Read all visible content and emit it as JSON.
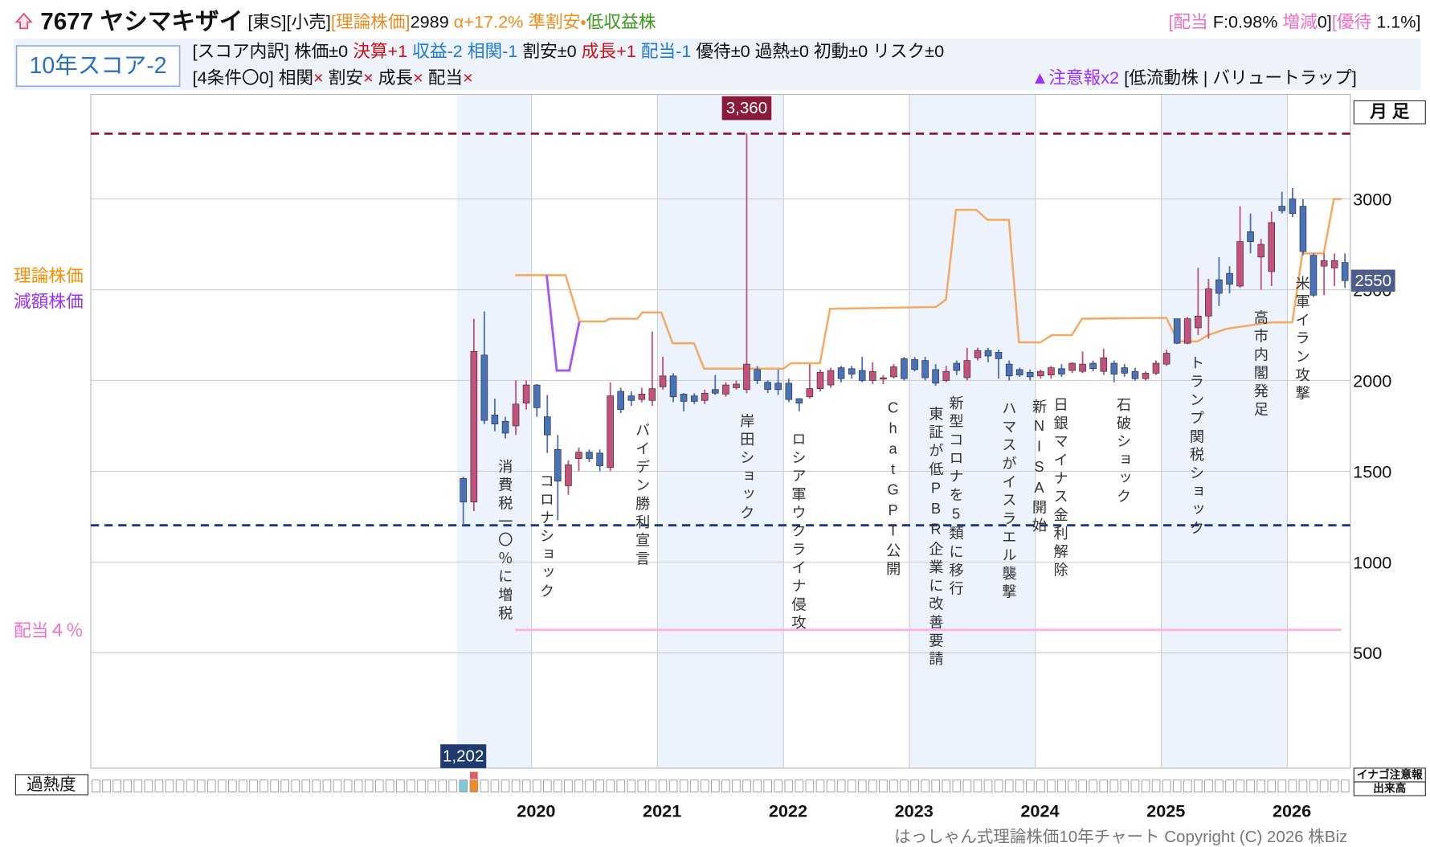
{
  "header": {
    "parts": [
      {
        "text": "7677 ヤシマキザイ",
        "color": "#111111",
        "bold": true
      },
      {
        "text": " [東S][小売]",
        "color": "#111111"
      },
      {
        "text": "[理論株価]",
        "color": "#f08c1e"
      },
      {
        "text": "2989 ",
        "color": "#111111"
      },
      {
        "text": "α+17.2% ",
        "color": "#f08c1e"
      },
      {
        "text": "準割安・",
        "color": "#f08c1e"
      },
      {
        "text": "低収益株",
        "color": "#3a9a1a"
      }
    ],
    "right_parts": [
      {
        "text": "[配当 ",
        "color": "#f06ec8"
      },
      {
        "text": "F:0.98% ",
        "color": "#111111"
      },
      {
        "text": "増減",
        "color": "#f06ec8"
      },
      {
        "text": "0]",
        "color": "#111111"
      },
      {
        "text": "[優待 ",
        "color": "#f06ec8"
      },
      {
        "text": "1.1%]",
        "color": "#111111"
      }
    ]
  },
  "score": {
    "box": "10年スコア-2",
    "line1": [
      {
        "text": "[スコア内訳] 株価±0 ",
        "color": "#111111"
      },
      {
        "text": "決算+1 ",
        "color": "#d0101a"
      },
      {
        "text": "収益-2 相関-1 ",
        "color": "#1f7ad6"
      },
      {
        "text": "割安±0 ",
        "color": "#111111"
      },
      {
        "text": "成長+1 ",
        "color": "#d0101a"
      },
      {
        "text": "配当-1 ",
        "color": "#1f7ad6"
      },
      {
        "text": "優待±0 過熱±0 初動±0 リスク±0",
        "color": "#111111"
      }
    ],
    "line2": [
      {
        "text": "[4条件〇0] 相関",
        "color": "#111111"
      },
      {
        "text": "× ",
        "color": "#d0101a"
      },
      {
        "text": "割安",
        "color": "#111111"
      },
      {
        "text": "× ",
        "color": "#d0101a"
      },
      {
        "text": "成長",
        "color": "#111111"
      },
      {
        "text": "× ",
        "color": "#d0101a"
      },
      {
        "text": "配当",
        "color": "#111111"
      },
      {
        "text": "×",
        "color": "#d0101a"
      }
    ],
    "alert": [
      {
        "text": "▲注意報x2 ",
        "color": "#9b30ff"
      },
      {
        "text": "[低流動株 | バリュートラップ]",
        "color": "#111111"
      }
    ]
  },
  "chart_data": {
    "type": "candlestick",
    "x": [
      2019.458,
      2019.542,
      2019.625,
      2019.708,
      2019.792,
      2019.875,
      2019.958,
      2020.042,
      2020.125,
      2020.208,
      2020.292,
      2020.375,
      2020.458,
      2020.542,
      2020.625,
      2020.708,
      2020.792,
      2020.875,
      2020.958,
      2021.042,
      2021.125,
      2021.208,
      2021.292,
      2021.375,
      2021.458,
      2021.542,
      2021.625,
      2021.708,
      2021.792,
      2021.875,
      2021.958,
      2022.042,
      2022.125,
      2022.208,
      2022.292,
      2022.375,
      2022.458,
      2022.542,
      2022.625,
      2022.708,
      2022.792,
      2022.875,
      2022.958,
      2023.042,
      2023.125,
      2023.208,
      2023.292,
      2023.375,
      2023.458,
      2023.542,
      2023.625,
      2023.708,
      2023.792,
      2023.875,
      2023.958,
      2024.042,
      2024.125,
      2024.208,
      2024.292,
      2024.375,
      2024.458,
      2024.542,
      2024.625,
      2024.708,
      2024.792,
      2024.875,
      2024.958,
      2025.042,
      2025.125,
      2025.208,
      2025.292,
      2025.375,
      2025.458,
      2025.542,
      2025.625,
      2025.708,
      2025.792,
      2025.875,
      2025.958,
      2026.042,
      2026.125,
      2026.208,
      2026.292,
      2026.375,
      2026.458
    ],
    "open": [
      1460,
      1330,
      2140,
      1810,
      1775,
      1750,
      1875,
      1975,
      1800,
      1620,
      1420,
      1570,
      1605,
      1600,
      1520,
      1940,
      1915,
      1895,
      1890,
      1965,
      2025,
      1925,
      1915,
      1890,
      1950,
      1925,
      1960,
      1950,
      2060,
      1990,
      1985,
      1985,
      1900,
      1910,
      1955,
      1975,
      2070,
      2065,
      2055,
      2000,
      2010,
      2020,
      2120,
      2115,
      2110,
      2060,
      2000,
      2095,
      2015,
      2125,
      2165,
      2155,
      2090,
      2060,
      2045,
      2025,
      2030,
      2065,
      2055,
      2050,
      2095,
      2050,
      2095,
      2070,
      2050,
      2010,
      2040,
      2090,
      2340,
      2205,
      2290,
      2355,
      2555,
      2590,
      2520,
      2820,
      2680,
      2600,
      2960,
      3000,
      2960,
      2690,
      2630,
      2620,
      2650
    ],
    "high": [
      1470,
      2340,
      2380,
      1900,
      1800,
      2000,
      2000,
      1980,
      1920,
      1700,
      1560,
      1630,
      1620,
      1620,
      1990,
      1960,
      1940,
      1960,
      2270,
      2130,
      2040,
      1930,
      1930,
      1950,
      2030,
      1990,
      2000,
      3360,
      2080,
      2000,
      2060,
      2010,
      1900,
      2090,
      2060,
      2070,
      2080,
      2080,
      2130,
      2100,
      2030,
      2090,
      2130,
      2130,
      2130,
      2090,
      2080,
      2110,
      2180,
      2180,
      2180,
      2170,
      2110,
      2070,
      2060,
      2060,
      2080,
      2090,
      2100,
      2160,
      2110,
      2175,
      2110,
      2090,
      2070,
      2050,
      2110,
      2170,
      2340,
      2350,
      2620,
      2560,
      2680,
      2630,
      2960,
      2920,
      2780,
      2930,
      3040,
      3060,
      3000,
      2700,
      2700,
      2700,
      2700
    ],
    "low": [
      1202,
      1280,
      1760,
      1720,
      1680,
      1700,
      1840,
      1800,
      1600,
      1230,
      1370,
      1500,
      1550,
      1500,
      1500,
      1820,
      1860,
      1880,
      1860,
      1950,
      1880,
      1830,
      1870,
      1870,
      1920,
      1910,
      1950,
      1930,
      1980,
      1930,
      1920,
      1880,
      1830,
      1900,
      1940,
      1960,
      1990,
      2010,
      1990,
      1980,
      1980,
      2010,
      2000,
      2050,
      2000,
      1970,
      1990,
      2030,
      2000,
      2110,
      2100,
      2010,
      2000,
      2020,
      2000,
      2010,
      2010,
      2020,
      2040,
      2040,
      2050,
      2030,
      1990,
      2020,
      2000,
      2000,
      2030,
      2080,
      2200,
      2200,
      2250,
      2230,
      2410,
      2480,
      2510,
      2700,
      2500,
      2520,
      2920,
      2900,
      2690,
      2460,
      2470,
      2520,
      2510
    ],
    "close": [
      1330,
      2160,
      1780,
      1760,
      1710,
      1870,
      1975,
      1850,
      1700,
      1445,
      1535,
      1605,
      1570,
      1530,
      1915,
      1840,
      1890,
      1925,
      1955,
      2025,
      1910,
      1885,
      1885,
      1930,
      1930,
      1975,
      1980,
      2090,
      2000,
      1950,
      1950,
      1895,
      1875,
      1955,
      2045,
      2055,
      2010,
      2035,
      2000,
      2050,
      2015,
      2075,
      2010,
      2060,
      2015,
      1985,
      2050,
      2055,
      2110,
      2165,
      2135,
      2120,
      2025,
      2030,
      2020,
      2050,
      2070,
      2035,
      2095,
      2090,
      2065,
      2125,
      2035,
      2040,
      2010,
      2040,
      2095,
      2150,
      2205,
      2340,
      2355,
      2505,
      2480,
      2530,
      2765,
      2765,
      2750,
      2870,
      2935,
      2920,
      2710,
      2470,
      2660,
      2660,
      2550
    ],
    "up_color": "#c4507c",
    "down_color": "#4a72b8",
    "series": [
      {
        "name": "理論株価",
        "color": "#f5a04f",
        "label_color": "#ff8c00",
        "x": [
          2019.87,
          2020.27,
          2020.38,
          2020.58,
          2020.62,
          2020.84,
          2020.88,
          2021.03,
          2021.12,
          2021.29,
          2021.37,
          2022.0,
          2022.06,
          2022.29,
          2022.37,
          2023.21,
          2023.29,
          2023.37,
          2023.53,
          2023.62,
          2023.79,
          2023.87,
          2024.04,
          2024.13,
          2024.29,
          2024.37,
          2025.04,
          2025.13,
          2025.29,
          2025.37,
          2025.52,
          2025.87,
          2026.04,
          2026.12,
          2026.29,
          2026.37,
          2026.43
        ],
        "values": [
          2580,
          2580,
          2325,
          2325,
          2340,
          2340,
          2375,
          2375,
          2205,
          2205,
          2065,
          2065,
          2095,
          2095,
          2395,
          2405,
          2445,
          2940,
          2940,
          2885,
          2885,
          2210,
          2210,
          2250,
          2250,
          2340,
          2345,
          2215,
          2215,
          2250,
          2285,
          2320,
          2320,
          2700,
          2700,
          3000,
          3000
        ]
      },
      {
        "name": "減額株価",
        "color": "#a855f7",
        "label_color": "#9b30ff",
        "x": [
          2020.12,
          2020.2,
          2020.3,
          2020.38
        ],
        "values": [
          2580,
          2055,
          2055,
          2325
        ]
      },
      {
        "name": "配当４％",
        "color": "#ffb0e8",
        "label_color": "#f06ec8",
        "x": [
          2019.87,
          2026.43
        ],
        "values": [
          626,
          626
        ]
      }
    ],
    "high_line": {
      "value": 3360,
      "label": "3,360",
      "color": "#8b1a3a"
    },
    "low_line": {
      "value": 1202,
      "label": "1,202",
      "color": "#1f3a6e"
    },
    "last": 2550,
    "annotations": [
      {
        "x": 2019.79,
        "text": "消費税一〇％に増税"
      },
      {
        "x": 2020.12,
        "text": "コロナショック"
      },
      {
        "x": 2020.88,
        "text": "バイデン勝利宣言"
      },
      {
        "x": 2021.71,
        "text": "岸田ショック"
      },
      {
        "x": 2022.12,
        "text": "ロシア軍ウクライナ侵攻"
      },
      {
        "x": 2022.87,
        "text": "ChatGPT公開"
      },
      {
        "x": 2023.21,
        "text": "東証が低PBR企業に改善要請"
      },
      {
        "x": 2023.37,
        "text": "新型コロナを5類に移行"
      },
      {
        "x": 2023.79,
        "text": "ハマスがイスラエル襲撃"
      },
      {
        "x": 2024.03,
        "text": "新NISA開始"
      },
      {
        "x": 2024.2,
        "text": "日銀マイナス金利解除"
      },
      {
        "x": 2024.7,
        "text": "石破ショック"
      },
      {
        "x": 2025.28,
        "text": "トランプ関税ショック"
      },
      {
        "x": 2025.79,
        "text": "高市内閣発足"
      },
      {
        "x": 2026.12,
        "text": "米軍イラン攻撃"
      }
    ],
    "xlim": [
      2016.5,
      2026.5
    ],
    "xticks": [
      2020,
      2021,
      2022,
      2023,
      2024,
      2025,
      2026
    ],
    "ylim": [
      -136,
      3576
    ],
    "yticks": [
      500,
      1000,
      1500,
      2000,
      2500,
      3000
    ],
    "grid": true
  },
  "period_button": "月 足",
  "heat_label": "過熱度",
  "side_labels": [
    "イナゴ注意報",
    "出来高"
  ],
  "footer": "はっしゃん式理論株価10年チャート Copyright (C) 2026 株Biz"
}
